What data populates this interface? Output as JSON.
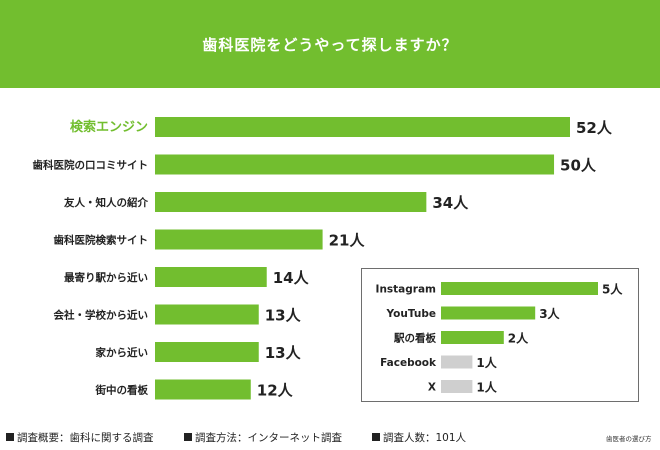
{
  "header": {
    "title": "歯科医院をどうやって探しますか？"
  },
  "colors": {
    "accent": "#72be2f",
    "highlight_label": "#72be2f",
    "inactive_bar": "#cfcfcf",
    "text": "#222222"
  },
  "chart_data": [
    {
      "type": "bar",
      "orientation": "horizontal",
      "title": "歯科医院をどうやって探しますか？",
      "categories": [
        "検索エンジン",
        "歯科医院の口コミサイト",
        "友人・知人の紹介",
        "歯科医院検索サイト",
        "最寄り駅から近い",
        "会社・学校から近い",
        "家から近い",
        "街中の看板"
      ],
      "values": [
        52,
        50,
        34,
        21,
        14,
        13,
        13,
        12
      ],
      "value_labels": [
        "52人",
        "50人",
        "34人",
        "21人",
        "14人",
        "13人",
        "13人",
        "12人"
      ],
      "highlighted_category": "検索エンジン",
      "xlim": [
        0,
        52
      ]
    },
    {
      "type": "bar",
      "orientation": "horizontal",
      "categories": [
        "Instagram",
        "YouTube",
        "駅の看板",
        "Facebook",
        "X"
      ],
      "values": [
        5,
        3,
        2,
        1,
        1
      ],
      "value_labels": [
        "5人",
        "3人",
        "2人",
        "1人",
        "1人"
      ],
      "bar_styles": [
        "green",
        "green",
        "green",
        "gray",
        "gray"
      ],
      "xlim": [
        0,
        5
      ]
    }
  ],
  "footer": {
    "notes": [
      "調査概要：歯科に関する調査",
      "調査方法：インターネット調査",
      "調査人数：101人"
    ],
    "brand": "歯医者の選び方"
  }
}
